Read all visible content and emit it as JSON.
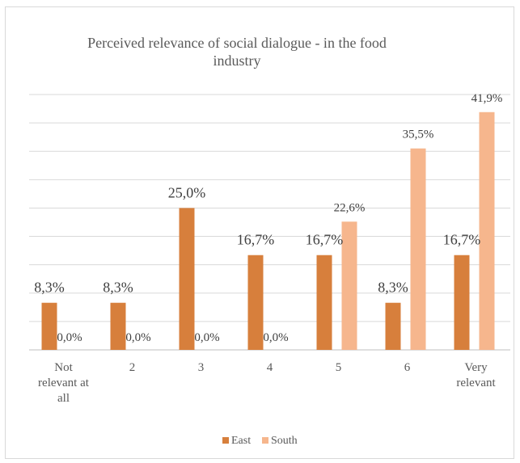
{
  "chart_data": {
    "type": "bar",
    "title_lines": [
      "Perceived relevance of social dialogue - in the food",
      "industry"
    ],
    "categories": [
      [
        "Not",
        "relevant at",
        "all"
      ],
      [
        "2"
      ],
      [
        "3"
      ],
      [
        "4"
      ],
      [
        "5"
      ],
      [
        "6"
      ],
      [
        "Very",
        "relevant"
      ]
    ],
    "series": [
      {
        "name": "East",
        "color": "#d77f3c",
        "values": [
          8.3,
          8.3,
          25.0,
          16.7,
          16.7,
          8.3,
          16.7
        ],
        "labels": [
          "8,3%",
          "8,3%",
          "25,0%",
          "16,7%",
          "16,7%",
          "8,3%",
          "16,7%"
        ]
      },
      {
        "name": "South",
        "color": "#f6b68d",
        "values": [
          0.0,
          0.0,
          0.0,
          0.0,
          22.6,
          35.5,
          41.9
        ],
        "labels": [
          "0,0%",
          "0,0%",
          "0,0%",
          "0,0%",
          "22,6%",
          "35,5%",
          "41,9%"
        ]
      }
    ],
    "ylim": [
      0,
      45
    ],
    "grid": true,
    "legend_position": "bottom"
  }
}
